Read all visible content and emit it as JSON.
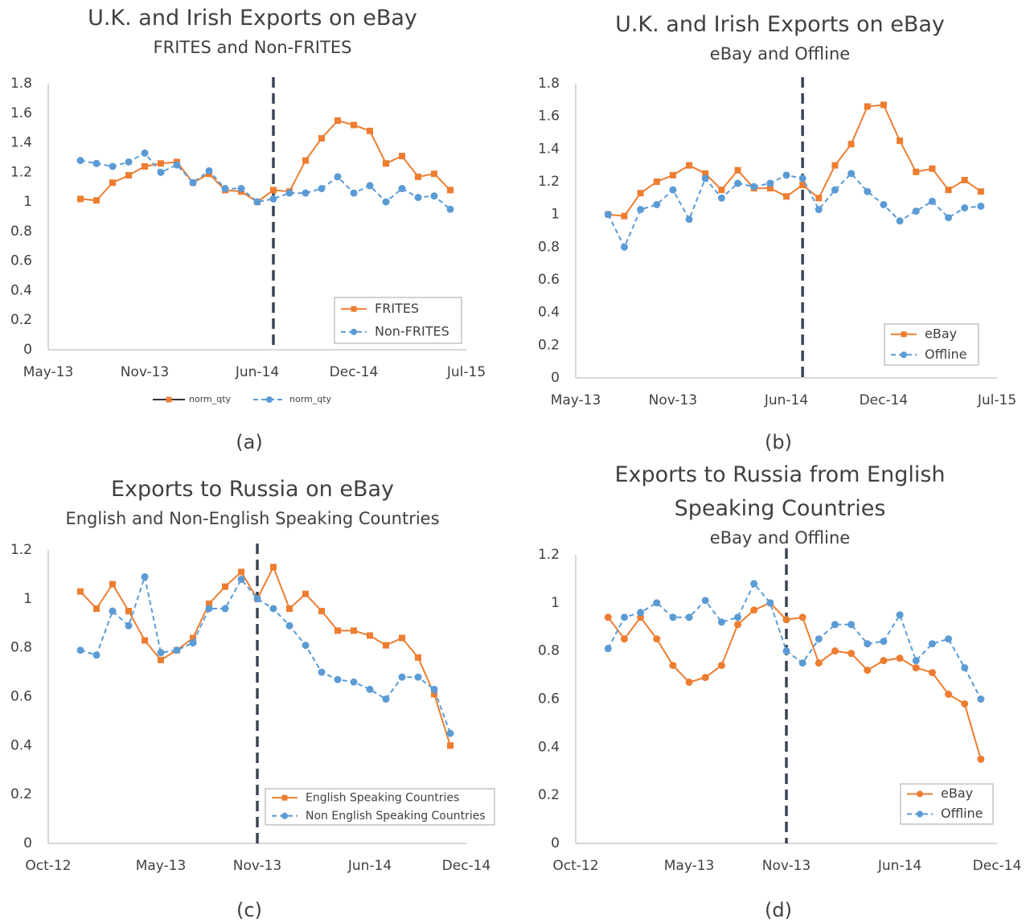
{
  "chart_data": [
    {
      "type": "line",
      "title": "U.K. and Irish Exports on eBay",
      "subtitle": "FRITES and Non-FRITES",
      "caption": "(a)",
      "x": [
        "2013-07",
        "2013-08",
        "2013-09",
        "2013-10",
        "2013-11",
        "2013-12",
        "2014-01",
        "2014-02",
        "2014-03",
        "2014-04",
        "2014-05",
        "2014-06",
        "2014-07",
        "2014-08",
        "2014-09",
        "2014-10",
        "2014-11",
        "2014-12",
        "2015-01",
        "2015-02",
        "2015-03",
        "2015-04",
        "2015-05",
        "2015-06"
      ],
      "series": [
        {
          "name": "FRITES",
          "color": "#ed7d31",
          "marker": "square",
          "dashed": false,
          "values": [
            1.02,
            1.01,
            1.13,
            1.18,
            1.24,
            1.26,
            1.27,
            1.13,
            1.19,
            1.08,
            1.07,
            1.0,
            1.08,
            1.07,
            1.28,
            1.43,
            1.55,
            1.52,
            1.48,
            1.26,
            1.31,
            1.17,
            1.19,
            1.08
          ]
        },
        {
          "name": "Non-FRITES",
          "color": "#5b9bd5",
          "marker": "circle",
          "dashed": true,
          "values": [
            1.28,
            1.26,
            1.24,
            1.27,
            1.33,
            1.2,
            1.25,
            1.13,
            1.21,
            1.09,
            1.09,
            1.0,
            1.02,
            1.06,
            1.06,
            1.09,
            1.17,
            1.06,
            1.11,
            1.0,
            1.09,
            1.03,
            1.04,
            0.95
          ]
        }
      ],
      "secondary_legend": [
        "norm_qty",
        "norm_qty"
      ],
      "xlim": [
        "2013-05",
        "2015-07"
      ],
      "xticks": [
        {
          "value": "2013-05",
          "label": "May-13"
        },
        {
          "value": "2013-11",
          "label": "Nov-13"
        },
        {
          "value": "2014-06",
          "label": "Jun-14"
        },
        {
          "value": "2014-12",
          "label": "Dec-14"
        },
        {
          "value": "2015-07",
          "label": "Jul-15"
        }
      ],
      "ylim": [
        0,
        1.8
      ],
      "yticks": [
        0,
        0.2,
        0.4,
        0.6,
        0.8,
        1,
        1.2,
        1.4,
        1.6,
        1.8
      ],
      "vline": "2014-07",
      "vline_color": "#3b4556",
      "grid": false,
      "legend": "bottom-right"
    },
    {
      "type": "line",
      "title": "U.K. and Irish Exports on eBay",
      "subtitle": "eBay and Offline",
      "caption": "(b)",
      "x": [
        "2013-07",
        "2013-08",
        "2013-09",
        "2013-10",
        "2013-11",
        "2013-12",
        "2014-01",
        "2014-02",
        "2014-03",
        "2014-04",
        "2014-05",
        "2014-06",
        "2014-07",
        "2014-08",
        "2014-09",
        "2014-10",
        "2014-11",
        "2014-12",
        "2015-01",
        "2015-02",
        "2015-03",
        "2015-04",
        "2015-05",
        "2015-06"
      ],
      "series": [
        {
          "name": "eBay",
          "color": "#ed7d31",
          "marker": "square",
          "dashed": false,
          "values": [
            1.0,
            0.99,
            1.13,
            1.2,
            1.24,
            1.3,
            1.25,
            1.15,
            1.27,
            1.16,
            1.16,
            1.11,
            1.18,
            1.1,
            1.3,
            1.43,
            1.66,
            1.67,
            1.45,
            1.26,
            1.28,
            1.15,
            1.21,
            1.14
          ]
        },
        {
          "name": "Offline",
          "color": "#5b9bd5",
          "marker": "circle",
          "dashed": true,
          "values": [
            1.0,
            0.8,
            1.03,
            1.06,
            1.15,
            0.97,
            1.22,
            1.1,
            1.19,
            1.17,
            1.19,
            1.24,
            1.22,
            1.03,
            1.15,
            1.25,
            1.14,
            1.06,
            0.96,
            1.02,
            1.08,
            0.98,
            1.04,
            1.05
          ]
        }
      ],
      "xlim": [
        "2013-05",
        "2015-07"
      ],
      "xticks": [
        {
          "value": "2013-05",
          "label": "May-13"
        },
        {
          "value": "2013-11",
          "label": "Nov-13"
        },
        {
          "value": "2014-06",
          "label": "Jun-14"
        },
        {
          "value": "2014-12",
          "label": "Dec-14"
        },
        {
          "value": "2015-07",
          "label": "Jul-15"
        }
      ],
      "ylim": [
        0,
        1.8
      ],
      "yticks": [
        0,
        0.2,
        0.4,
        0.6,
        0.8,
        1,
        1.2,
        1.4,
        1.6,
        1.8
      ],
      "vline": "2014-07",
      "vline_color": "#3b4556",
      "grid": false,
      "legend": "bottom-right"
    },
    {
      "type": "line",
      "title": "Exports to Russia on eBay",
      "subtitle": "English and Non-English Speaking Countries",
      "caption": "(c)",
      "x": [
        "2012-12",
        "2013-01",
        "2013-02",
        "2013-03",
        "2013-04",
        "2013-05",
        "2013-06",
        "2013-07",
        "2013-08",
        "2013-09",
        "2013-10",
        "2013-11",
        "2013-12",
        "2014-01",
        "2014-02",
        "2014-03",
        "2014-04",
        "2014-05",
        "2014-06",
        "2014-07",
        "2014-08",
        "2014-09",
        "2014-10",
        "2014-11"
      ],
      "series": [
        {
          "name": "English Speaking Countries",
          "color": "#ed7d31",
          "marker": "square",
          "dashed": false,
          "values": [
            1.03,
            0.96,
            1.06,
            0.95,
            0.83,
            0.75,
            0.79,
            0.84,
            0.98,
            1.05,
            1.11,
            1.0,
            1.13,
            0.96,
            1.02,
            0.95,
            0.87,
            0.87,
            0.85,
            0.81,
            0.84,
            0.76,
            0.61,
            0.4
          ]
        },
        {
          "name": "Non English Speaking Countries",
          "color": "#5b9bd5",
          "marker": "circle",
          "dashed": true,
          "values": [
            0.79,
            0.77,
            0.95,
            0.89,
            1.09,
            0.78,
            0.79,
            0.82,
            0.96,
            0.96,
            1.08,
            1.0,
            0.96,
            0.89,
            0.81,
            0.7,
            0.67,
            0.66,
            0.63,
            0.59,
            0.68,
            0.68,
            0.63,
            0.45
          ]
        }
      ],
      "xlim": [
        "2012-10",
        "2014-12"
      ],
      "xticks": [
        {
          "value": "2012-10",
          "label": "Oct-12"
        },
        {
          "value": "2013-05",
          "label": "May-13"
        },
        {
          "value": "2013-11",
          "label": "Nov-13"
        },
        {
          "value": "2014-06",
          "label": "Jun-14"
        },
        {
          "value": "2014-12",
          "label": "Dec-14"
        }
      ],
      "ylim": [
        0,
        1.2
      ],
      "yticks": [
        0,
        0.2,
        0.4,
        0.6,
        0.8,
        1,
        1.2
      ],
      "vline": "2013-11",
      "vline_color": "#3b4556",
      "grid": false,
      "legend": "bottom-right"
    },
    {
      "type": "line",
      "title": "Exports to Russia from English Speaking Countries",
      "subtitle": "eBay and Offline",
      "caption": "(d)",
      "x": [
        "2012-12",
        "2013-01",
        "2013-02",
        "2013-03",
        "2013-04",
        "2013-05",
        "2013-06",
        "2013-07",
        "2013-08",
        "2013-09",
        "2013-10",
        "2013-11",
        "2013-12",
        "2014-01",
        "2014-02",
        "2014-03",
        "2014-04",
        "2014-05",
        "2014-06",
        "2014-07",
        "2014-08",
        "2014-09",
        "2014-10",
        "2014-11"
      ],
      "series": [
        {
          "name": "eBay",
          "color": "#ed7d31",
          "marker": "circle",
          "dashed": false,
          "values": [
            0.94,
            0.85,
            0.94,
            0.85,
            0.74,
            0.67,
            0.69,
            0.74,
            0.91,
            0.97,
            1.0,
            0.93,
            0.94,
            0.75,
            0.8,
            0.79,
            0.72,
            0.76,
            0.77,
            0.73,
            0.71,
            0.62,
            0.58,
            0.35
          ]
        },
        {
          "name": "Offline",
          "color": "#5b9bd5",
          "marker": "circle",
          "dashed": true,
          "values": [
            0.81,
            0.94,
            0.96,
            1.0,
            0.94,
            0.94,
            1.01,
            0.92,
            0.94,
            1.08,
            1.0,
            0.8,
            0.75,
            0.85,
            0.91,
            0.91,
            0.83,
            0.84,
            0.95,
            0.76,
            0.83,
            0.85,
            0.73,
            0.6
          ]
        }
      ],
      "xlim": [
        "2012-10",
        "2014-12"
      ],
      "xticks": [
        {
          "value": "2012-10",
          "label": "Oct-12"
        },
        {
          "value": "2013-05",
          "label": "May-13"
        },
        {
          "value": "2013-11",
          "label": "Nov-13"
        },
        {
          "value": "2014-06",
          "label": "Jun-14"
        },
        {
          "value": "2014-12",
          "label": "Dec-14"
        }
      ],
      "ylim": [
        0,
        1.2
      ],
      "yticks": [
        0,
        0.2,
        0.4,
        0.6,
        0.8,
        1,
        1.2
      ],
      "vline": "2013-11",
      "vline_color": "#3b4556",
      "grid": false,
      "legend": "bottom-right"
    }
  ]
}
